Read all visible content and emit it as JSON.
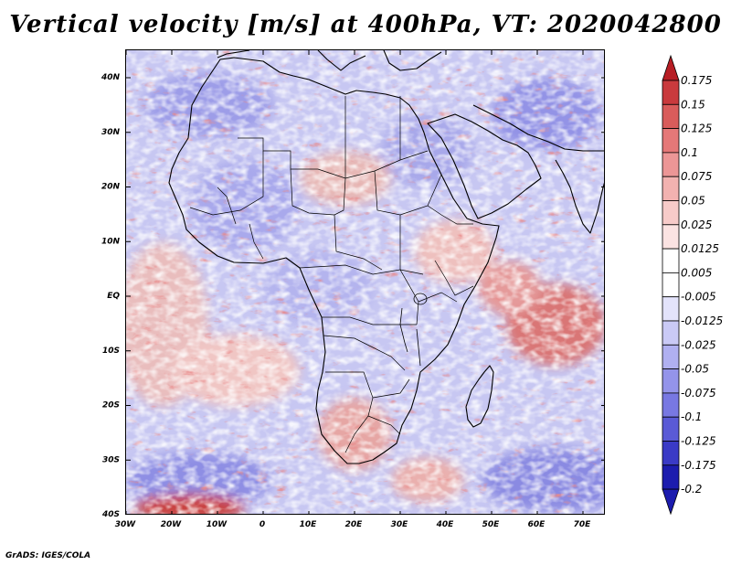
{
  "title": "Vertical velocity [m/s] at 400hPa, VT: 2020042800",
  "credit": "GrADS: IGES/COLA",
  "axes": {
    "lon_labels": [
      "30W",
      "20W",
      "10W",
      "0",
      "10E",
      "20E",
      "30E",
      "40E",
      "50E",
      "60E",
      "70E"
    ],
    "lat_labels": [
      "40N",
      "30N",
      "20N",
      "10N",
      "EQ",
      "10S",
      "20S",
      "30S",
      "40S"
    ]
  },
  "colorbar": {
    "levels": [
      {
        "label": "0.175",
        "color": "#b71d24"
      },
      {
        "label": "0.15",
        "color": "#c93a3d"
      },
      {
        "label": "0.125",
        "color": "#d95c5b"
      },
      {
        "label": "0.1",
        "color": "#e57878"
      },
      {
        "label": "0.075",
        "color": "#ec9696"
      },
      {
        "label": "0.05",
        "color": "#f2b2b0"
      },
      {
        "label": "0.025",
        "color": "#f7cbc9"
      },
      {
        "label": "0.0125",
        "color": "#fbe3e2"
      },
      {
        "label": "0.005",
        "color": "#ffffff"
      },
      {
        "label": "-0.005",
        "color": "#ffffff"
      },
      {
        "label": "-0.0125",
        "color": "#e3e3fb"
      },
      {
        "label": "-0.025",
        "color": "#cacaf6"
      },
      {
        "label": "-0.05",
        "color": "#b0b0f1"
      },
      {
        "label": "-0.075",
        "color": "#9494ea"
      },
      {
        "label": "-0.1",
        "color": "#7878e2"
      },
      {
        "label": "-0.125",
        "color": "#5a5ad6"
      },
      {
        "label": "-0.175",
        "color": "#3a3ac6"
      },
      {
        "label": "-0.2",
        "color": "#1c1cae"
      }
    ],
    "top_arrow_color": "#b71d24",
    "bottom_arrow_color": "#1c1cae"
  }
}
